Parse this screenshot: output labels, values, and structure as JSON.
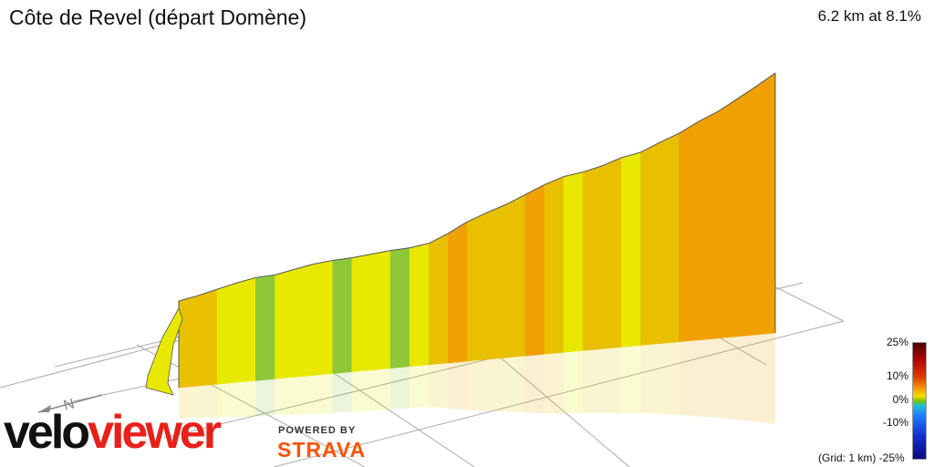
{
  "header": {
    "title": "Côte de Revel (départ Domène)",
    "stats": "6.2 km at 8.1%"
  },
  "legend": {
    "ticks": [
      "25%",
      "10%",
      "0%",
      "-10%",
      "-25%"
    ],
    "grid_note": "(Grid: 1 km)"
  },
  "branding": {
    "logo_part1": "velo",
    "logo_part2": "viewer",
    "powered_by": "POWERED BY",
    "partner": "STRAVA"
  },
  "compass": {
    "label": "N"
  },
  "colors": {
    "flat": "#8ec83a",
    "gentle": "#e8e800",
    "moderate": "#e8c000",
    "steep": "#f0a000",
    "wall_outline": "#555555",
    "grid": "#aaaaaa"
  },
  "chart_data": {
    "type": "area",
    "title": "Côte de Revel (départ Domène)",
    "xlabel": "",
    "ylabel": "",
    "x_unit": "km",
    "gradient_scale": [
      -25,
      25
    ],
    "length_km": 6.2,
    "avg_gradient_pct": 8.1,
    "distance_km": [
      0,
      0.2,
      0.4,
      0.6,
      0.8,
      1.0,
      1.2,
      1.4,
      1.6,
      1.8,
      2.0,
      2.2,
      2.4,
      2.6,
      2.8,
      3.0,
      3.2,
      3.4,
      3.6,
      3.8,
      4.0,
      4.2,
      4.4,
      4.6,
      4.8,
      5.0,
      5.2,
      5.4,
      5.6,
      5.8,
      6.0,
      6.2
    ],
    "elevation_rel": [
      0,
      12,
      26,
      40,
      52,
      58,
      70,
      82,
      90,
      96,
      104,
      112,
      118,
      128,
      150,
      176,
      196,
      214,
      236,
      258,
      276,
      286,
      300,
      318,
      330,
      352,
      372,
      398,
      420,
      448,
      476,
      506
    ],
    "gradient_pct": [
      4,
      7,
      7,
      6,
      5,
      3,
      6,
      6,
      4,
      3,
      4,
      4,
      3,
      5,
      9,
      10,
      9,
      8,
      9,
      10,
      8,
      6,
      7,
      8,
      6,
      9,
      9,
      11,
      10,
      12,
      12,
      13
    ]
  }
}
